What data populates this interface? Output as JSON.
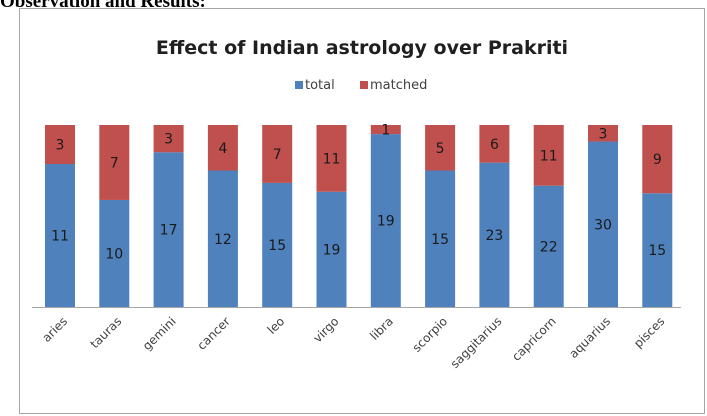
{
  "document": {
    "heading": "Observation and Results:"
  },
  "chart_data": {
    "type": "bar",
    "stacked": "100%",
    "title": "Effect of Indian astrology over Prakriti",
    "xlabel": "",
    "ylabel": "",
    "legend_position": "top",
    "grid": false,
    "categories": [
      "aries",
      "tauras",
      "gemini",
      "cancer",
      "leo",
      "virgo",
      "libra",
      "scorpio",
      "saggitarius",
      "capricorn",
      "aquarius",
      "pisces"
    ],
    "series": [
      {
        "name": "total",
        "color": "#4f81bd",
        "values": [
          11,
          10,
          17,
          12,
          15,
          19,
          19,
          15,
          23,
          22,
          30,
          15
        ]
      },
      {
        "name": "matched",
        "color": "#c0504d",
        "values": [
          3,
          7,
          3,
          4,
          7,
          11,
          1,
          5,
          6,
          11,
          3,
          9
        ]
      }
    ]
  }
}
